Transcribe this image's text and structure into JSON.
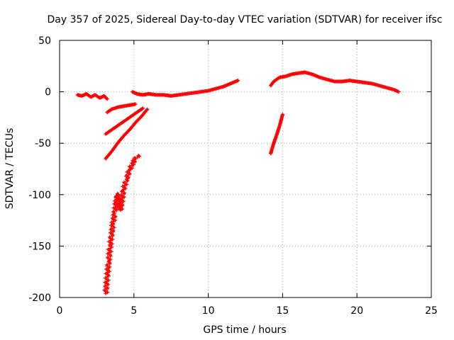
{
  "chart_data": {
    "type": "scatter",
    "title": "Day 357 of 2025, Sidereal Day-to-day VTEC variation (SDTVAR) for receiver ifsc",
    "xlabel": "GPS time / hours",
    "ylabel": "SDTVAR / TECUs",
    "xlim": [
      0,
      25
    ],
    "ylim": [
      -200,
      50
    ],
    "xticks": [
      0,
      5,
      10,
      15,
      20,
      25
    ],
    "xtick_labels": [
      "0",
      "5",
      "10",
      "15",
      "20",
      "25"
    ],
    "yticks": [
      -200,
      -150,
      -100,
      -50,
      0,
      50
    ],
    "ytick_labels": [
      "-200",
      "-150",
      "-100",
      "-50",
      "0",
      "50"
    ],
    "grid": true,
    "legend": "none",
    "marker": "+",
    "series_color": "#ff0000",
    "segments": [
      {
        "name": "morning-cluster",
        "points": [
          [
            1.2,
            -3
          ],
          [
            1.5,
            -4
          ],
          [
            1.8,
            -2
          ],
          [
            2.1,
            -5
          ],
          [
            2.4,
            -3
          ],
          [
            2.7,
            -6
          ],
          [
            3.0,
            -4
          ],
          [
            3.2,
            -7
          ]
        ]
      },
      {
        "name": "arc-upper",
        "points": [
          [
            3.2,
            -20
          ],
          [
            3.5,
            -17
          ],
          [
            3.9,
            -15
          ],
          [
            4.3,
            -14
          ],
          [
            4.7,
            -13
          ],
          [
            5.1,
            -12
          ]
        ]
      },
      {
        "name": "arc-middle",
        "points": [
          [
            3.1,
            -41
          ],
          [
            3.5,
            -37
          ],
          [
            3.9,
            -33
          ],
          [
            4.3,
            -29
          ],
          [
            4.7,
            -25
          ],
          [
            5.1,
            -21
          ],
          [
            5.6,
            -16
          ]
        ]
      },
      {
        "name": "arc-lower",
        "points": [
          [
            3.1,
            -65
          ],
          [
            3.5,
            -58
          ],
          [
            3.9,
            -50
          ],
          [
            4.3,
            -43
          ],
          [
            4.7,
            -37
          ],
          [
            5.1,
            -30
          ],
          [
            5.5,
            -24
          ],
          [
            5.9,
            -17
          ]
        ]
      },
      {
        "name": "steep-rise",
        "points": [
          [
            3.1,
            -196
          ],
          [
            3.2,
            -180
          ],
          [
            3.3,
            -165
          ],
          [
            3.4,
            -150
          ],
          [
            3.5,
            -138
          ],
          [
            3.6,
            -128
          ],
          [
            3.7,
            -118
          ],
          [
            3.8,
            -108
          ],
          [
            3.9,
            -99
          ],
          [
            4.1,
            -115
          ],
          [
            4.3,
            -95
          ],
          [
            4.5,
            -85
          ],
          [
            4.7,
            -76
          ],
          [
            4.9,
            -70
          ],
          [
            5.1,
            -65
          ],
          [
            5.3,
            -62
          ]
        ]
      },
      {
        "name": "daytime-band",
        "points": [
          [
            4.9,
            0
          ],
          [
            5.2,
            -2
          ],
          [
            5.6,
            -3
          ],
          [
            6.0,
            -2
          ],
          [
            6.5,
            -3
          ],
          [
            7.0,
            -3
          ],
          [
            7.5,
            -4
          ],
          [
            8.0,
            -3
          ],
          [
            8.5,
            -2
          ],
          [
            9.0,
            -1
          ],
          [
            9.5,
            0
          ],
          [
            10.0,
            1
          ],
          [
            10.5,
            3
          ],
          [
            11.0,
            5
          ],
          [
            11.5,
            8
          ],
          [
            12.0,
            11
          ]
        ]
      },
      {
        "name": "afternoon-arc",
        "points": [
          [
            14.2,
            -60
          ],
          [
            14.4,
            -50
          ],
          [
            14.6,
            -42
          ],
          [
            14.8,
            -33
          ],
          [
            15.0,
            -22
          ]
        ]
      },
      {
        "name": "afternoon-band",
        "points": [
          [
            14.2,
            6
          ],
          [
            14.4,
            10
          ],
          [
            14.8,
            14
          ],
          [
            15.2,
            15
          ],
          [
            15.6,
            17
          ],
          [
            16.0,
            18
          ],
          [
            16.5,
            19
          ],
          [
            17.0,
            17
          ],
          [
            17.5,
            14
          ],
          [
            18.0,
            12
          ],
          [
            18.5,
            10
          ],
          [
            19.0,
            10
          ],
          [
            19.5,
            11
          ],
          [
            20.0,
            10
          ],
          [
            20.5,
            9
          ],
          [
            21.0,
            8
          ],
          [
            21.5,
            6
          ],
          [
            22.0,
            4
          ],
          [
            22.5,
            2
          ],
          [
            22.8,
            0
          ]
        ]
      }
    ]
  }
}
